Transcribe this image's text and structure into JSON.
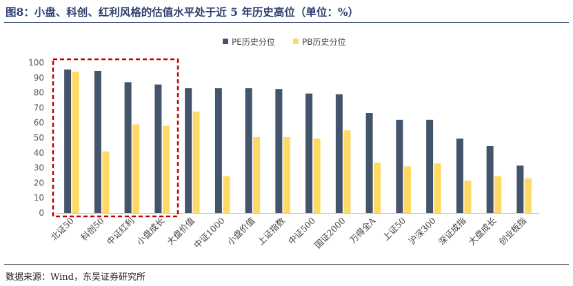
{
  "header": {
    "title": "图8：小盘、科创、红利风格的估值水平处于近 5 年历史高位（单位：%）"
  },
  "footer": {
    "source": "数据来源：Wind，东吴证券研究所"
  },
  "chart_data": {
    "type": "bar",
    "title": "图8：小盘、科创、红利风格的估值水平处于近 5 年历史高位（单位：%）",
    "xlabel": "",
    "ylabel": "",
    "ylim": [
      0,
      100
    ],
    "yticks": [
      0,
      10,
      20,
      30,
      40,
      50,
      60,
      70,
      80,
      90,
      100
    ],
    "grid": false,
    "legend_position": "top",
    "highlight": {
      "style": "dashed-box",
      "color": "#c00000",
      "categories": [
        "北证50",
        "科创50",
        "中证红利",
        "小盘成长"
      ]
    },
    "categories": [
      "北证50",
      "科创50",
      "中证红利",
      "小盘成长",
      "大盘价值",
      "中证1000",
      "小盘价值",
      "上证指数",
      "中证500",
      "国证2000",
      "万得全A",
      "上证50",
      "沪深300",
      "深证成指",
      "大盘成长",
      "创业板指"
    ],
    "series": [
      {
        "name": "PE历史分位",
        "color": "#44546a",
        "values": [
          95.5,
          94.5,
          87,
          85.5,
          83,
          83,
          83,
          82.5,
          79.5,
          79,
          66.5,
          62,
          62,
          49.5,
          44.5,
          31.5
        ]
      },
      {
        "name": "PB历史分位",
        "color": "#ffd966",
        "values": [
          94,
          41,
          59,
          58,
          67.5,
          24.5,
          50.5,
          50.5,
          49.5,
          55,
          33.5,
          31,
          33,
          21.5,
          24.5,
          23
        ]
      }
    ]
  }
}
